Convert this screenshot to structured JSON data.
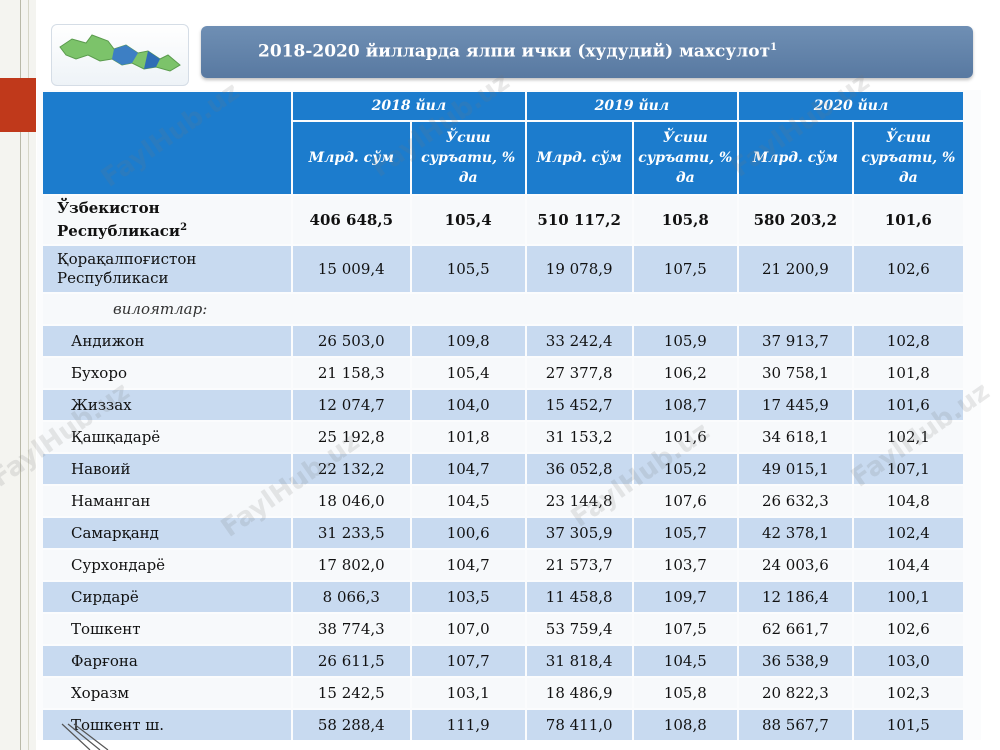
{
  "title": "2018-2020 йилларда ялпи ички (худудий) махсулот",
  "title_sup": "1",
  "header": {
    "years": [
      "2018 йил",
      "2019 йил",
      "2020 йил"
    ],
    "col_value": "Млрд. сўм",
    "col_growth": "Ўсиш суръати, % да"
  },
  "rows": [
    {
      "name": "Ўзбекистон Республикаси",
      "sup": "2",
      "v2018": "406 648,5",
      "g2018": "105,4",
      "v2019": "510 117,2",
      "g2019": "105,8",
      "v2020": "580 203,2",
      "g2020": "101,6"
    },
    {
      "name": "Қорақалпоғистон Республикаси",
      "v2018": "15 009,4",
      "g2018": "105,5",
      "v2019": "19 078,9",
      "g2019": "107,5",
      "v2020": "21 200,9",
      "g2020": "102,6"
    },
    {
      "name": "вилоятлар:"
    },
    {
      "name": "Андижон",
      "v2018": "26 503,0",
      "g2018": "109,8",
      "v2019": "33 242,4",
      "g2019": "105,9",
      "v2020": "37 913,7",
      "g2020": "102,8"
    },
    {
      "name": "Бухоро",
      "v2018": "21 158,3",
      "g2018": "105,4",
      "v2019": "27 377,8",
      "g2019": "106,2",
      "v2020": "30 758,1",
      "g2020": "101,8"
    },
    {
      "name": "Жиззах",
      "v2018": "12 074,7",
      "g2018": "104,0",
      "v2019": "15 452,7",
      "g2019": "108,7",
      "v2020": "17 445,9",
      "g2020": "101,6"
    },
    {
      "name": "Қашқадарё",
      "v2018": "25 192,8",
      "g2018": "101,8",
      "v2019": "31 153,2",
      "g2019": "101,6",
      "v2020": "34 618,1",
      "g2020": "102,1"
    },
    {
      "name": "Навоий",
      "v2018": "22 132,2",
      "g2018": "104,7",
      "v2019": "36 052,8",
      "g2019": "105,2",
      "v2020": "49 015,1",
      "g2020": "107,1"
    },
    {
      "name": "Наманган",
      "v2018": "18 046,0",
      "g2018": "104,5",
      "v2019": "23 144,8",
      "g2019": "107,6",
      "v2020": "26 632,3",
      "g2020": "104,8"
    },
    {
      "name": "Самарқанд",
      "v2018": "31 233,5",
      "g2018": "100,6",
      "v2019": "37 305,9",
      "g2019": "105,7",
      "v2020": "42 378,1",
      "g2020": "102,4"
    },
    {
      "name": "Сурхондарё",
      "v2018": "17 802,0",
      "g2018": "104,7",
      "v2019": "21 573,7",
      "g2019": "103,7",
      "v2020": "24 003,6",
      "g2020": "104,4"
    },
    {
      "name": "Сирдарё",
      "v2018": "8 066,3",
      "g2018": "103,5",
      "v2019": "11 458,8",
      "g2019": "109,7",
      "v2020": "12 186,4",
      "g2020": "100,1"
    },
    {
      "name": "Тошкент",
      "v2018": "38 774,3",
      "g2018": "107,0",
      "v2019": "53 759,4",
      "g2019": "107,5",
      "v2020": "62 661,7",
      "g2020": "102,6"
    },
    {
      "name": "Фарғона",
      "v2018": "26 611,5",
      "g2018": "107,7",
      "v2019": "31 818,4",
      "g2019": "104,5",
      "v2020": "36 538,9",
      "g2020": "103,0"
    },
    {
      "name": "Хоразм",
      "v2018": "15 242,5",
      "g2018": "103,1",
      "v2019": "18 486,9",
      "g2019": "105,8",
      "v2020": "20 822,3",
      "g2020": "102,3"
    },
    {
      "name": "Тошкент ш.",
      "v2018": "58 288,4",
      "g2018": "111,9",
      "v2019": "78 411,0",
      "g2019": "108,8",
      "v2020": "88 567,7",
      "g2020": "101,5"
    }
  ],
  "watermark": "FaylHub.uz",
  "colors": {
    "header_blue": "#1c7ccd",
    "row_shade": "#c8daf0",
    "banner": "#5f80a8",
    "accent_red": "#c0391b"
  }
}
